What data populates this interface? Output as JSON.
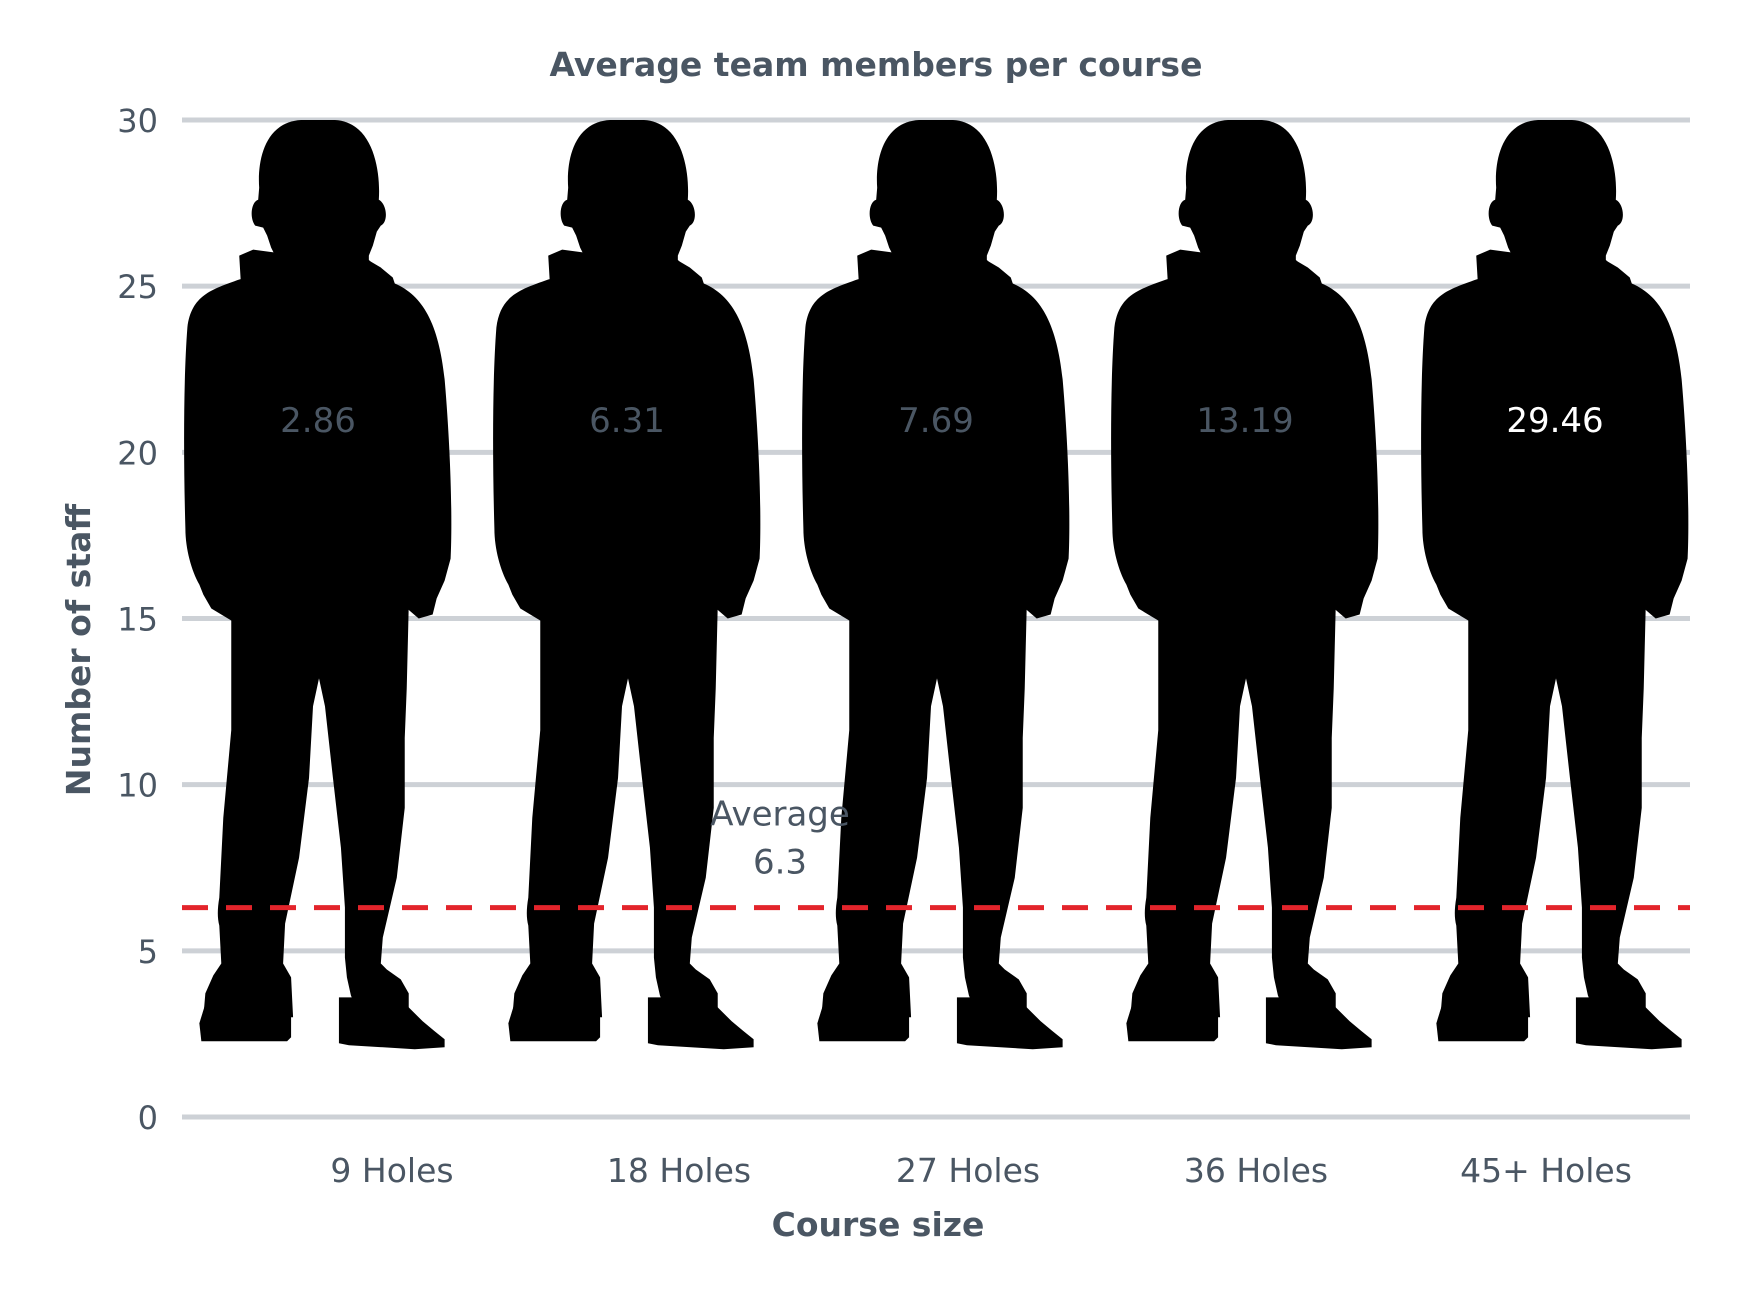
{
  "chart_data": {
    "type": "bar",
    "title": "Average team members per course",
    "xlabel": "Course size",
    "ylabel": "Number of staff",
    "categories": [
      "9 Holes",
      "18 Holes",
      "27 Holes",
      "36 Holes",
      "45+ Holes"
    ],
    "values": [
      2.86,
      6.31,
      7.69,
      13.19,
      29.46
    ],
    "value_labels": [
      "2.86",
      "6.31",
      "7.69",
      "13.19",
      "29.46"
    ],
    "ylim": [
      0,
      30
    ],
    "yticks": [
      0,
      5,
      10,
      15,
      20,
      25,
      30
    ],
    "grid": true,
    "average": {
      "label": "Average",
      "value": 6.3,
      "value_label": "6.3"
    },
    "colors": {
      "fill": "#00aeef",
      "silhouette": "#cdd1d6",
      "grid": "#cdd1d6",
      "average_line": "#e3242b",
      "text": "#4a5663",
      "value_label_on_fill": "#ffffff"
    }
  }
}
